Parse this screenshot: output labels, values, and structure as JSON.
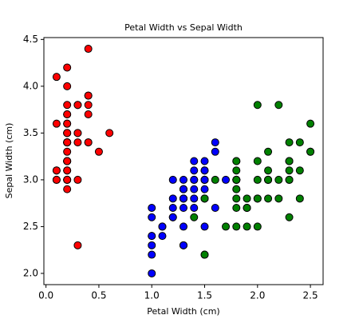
{
  "chart_data": {
    "type": "scatter",
    "title": "Petal Width vs Sepal Width",
    "x_label": "Petal Width (cm)",
    "y_label": "Sepal Width (cm)",
    "xlim": [
      -0.02,
      2.62
    ],
    "ylim": [
      1.88,
      4.52
    ],
    "xticks": [
      {
        "value": 0,
        "label": "0.0"
      },
      0.5,
      {
        "value": 1,
        "label": "1.0"
      },
      1.5,
      {
        "value": 2,
        "label": "2.0"
      },
      2.5
    ],
    "yticks": [
      {
        "value": 2,
        "label": "2.0"
      },
      2.5,
      {
        "value": 3,
        "label": "3.0"
      },
      3.5,
      {
        "value": 4,
        "label": "4.0"
      },
      4.5
    ],
    "grid": false,
    "series": [
      {
        "color": "#ff0000",
        "x": [
          0.2,
          0.2,
          0.2,
          0.2,
          0.2,
          0.4,
          0.3,
          0.2,
          0.2,
          0.1,
          0.2,
          0.2,
          0.1,
          0.1,
          0.2,
          0.4,
          0.4,
          0.3,
          0.3,
          0.3,
          0.2,
          0.4,
          0.2,
          0.5,
          0.2,
          0.2,
          0.4,
          0.2,
          0.2,
          0.2,
          0.2,
          0.4,
          0.1,
          0.2,
          0.1,
          0.2,
          0.2,
          0.1,
          0.2,
          0.2,
          0.3,
          0.3,
          0.2,
          0.6,
          0.4,
          0.3,
          0.2,
          0.2,
          0.2,
          0.2
        ],
        "values": [
          3.5,
          3.0,
          3.2,
          3.1,
          3.6,
          3.9,
          3.4,
          3.4,
          2.9,
          3.1,
          3.7,
          3.4,
          3.0,
          3.0,
          4.0,
          4.4,
          3.9,
          3.5,
          3.8,
          3.8,
          3.4,
          3.7,
          3.6,
          3.3,
          3.4,
          3.0,
          3.4,
          3.5,
          3.4,
          3.2,
          3.1,
          3.4,
          4.1,
          4.2,
          3.1,
          3.2,
          3.5,
          3.6,
          3.0,
          3.4,
          3.5,
          2.3,
          3.2,
          3.5,
          3.8,
          3.0,
          3.8,
          3.2,
          3.7,
          3.3
        ]
      },
      {
        "color": "#0000ff",
        "x": [
          1.4,
          1.5,
          1.5,
          1.3,
          1.5,
          1.3,
          1.6,
          1.0,
          1.3,
          1.4,
          1.0,
          1.5,
          1.0,
          1.4,
          1.3,
          1.4,
          1.5,
          1.0,
          1.5,
          1.1,
          1.8,
          1.3,
          1.5,
          1.2,
          1.3,
          1.4,
          1.4,
          1.7,
          1.5,
          1.0,
          1.1,
          1.0,
          1.2,
          1.6,
          1.5,
          1.6,
          1.5,
          1.3,
          1.3,
          1.3,
          1.2,
          1.4,
          1.2,
          1.0,
          1.3,
          1.2,
          1.3,
          1.3,
          1.1,
          1.3
        ],
        "values": [
          3.2,
          3.2,
          3.1,
          2.3,
          2.8,
          2.8,
          3.3,
          2.4,
          2.9,
          2.7,
          2.0,
          3.0,
          2.2,
          2.9,
          2.9,
          3.1,
          3.0,
          2.7,
          2.2,
          2.5,
          3.2,
          2.8,
          2.5,
          2.8,
          2.9,
          3.0,
          2.8,
          3.0,
          2.9,
          2.6,
          2.4,
          2.4,
          2.7,
          2.7,
          3.0,
          3.4,
          3.1,
          2.3,
          3.0,
          2.5,
          2.6,
          3.0,
          2.6,
          2.3,
          2.7,
          3.0,
          2.9,
          2.9,
          2.5,
          2.8
        ]
      },
      {
        "color": "#008000",
        "x": [
          2.5,
          1.9,
          2.1,
          1.8,
          2.2,
          2.1,
          1.7,
          1.8,
          1.8,
          2.5,
          2.0,
          1.9,
          2.1,
          2.0,
          2.4,
          2.3,
          1.8,
          2.2,
          2.3,
          1.5,
          2.3,
          2.0,
          2.0,
          1.8,
          2.1,
          1.8,
          1.8,
          1.8,
          2.1,
          1.6,
          1.9,
          2.0,
          2.2,
          1.5,
          1.4,
          2.3,
          2.4,
          1.8,
          1.8,
          2.1,
          2.4,
          2.3,
          1.9,
          2.3,
          2.5,
          2.3,
          1.9,
          2.0,
          2.3,
          1.8
        ],
        "values": [
          3.3,
          2.7,
          3.0,
          2.9,
          3.0,
          3.0,
          2.5,
          2.9,
          2.5,
          3.6,
          3.2,
          2.7,
          3.0,
          2.5,
          2.8,
          3.2,
          3.0,
          3.8,
          2.6,
          2.2,
          3.2,
          2.8,
          2.8,
          2.7,
          3.3,
          3.2,
          2.8,
          3.0,
          2.8,
          3.0,
          2.8,
          3.8,
          2.8,
          2.8,
          2.6,
          3.0,
          3.4,
          3.1,
          3.0,
          3.1,
          3.1,
          3.1,
          2.7,
          3.2,
          3.3,
          3.0,
          2.5,
          3.0,
          3.4,
          3.0
        ]
      }
    ]
  }
}
